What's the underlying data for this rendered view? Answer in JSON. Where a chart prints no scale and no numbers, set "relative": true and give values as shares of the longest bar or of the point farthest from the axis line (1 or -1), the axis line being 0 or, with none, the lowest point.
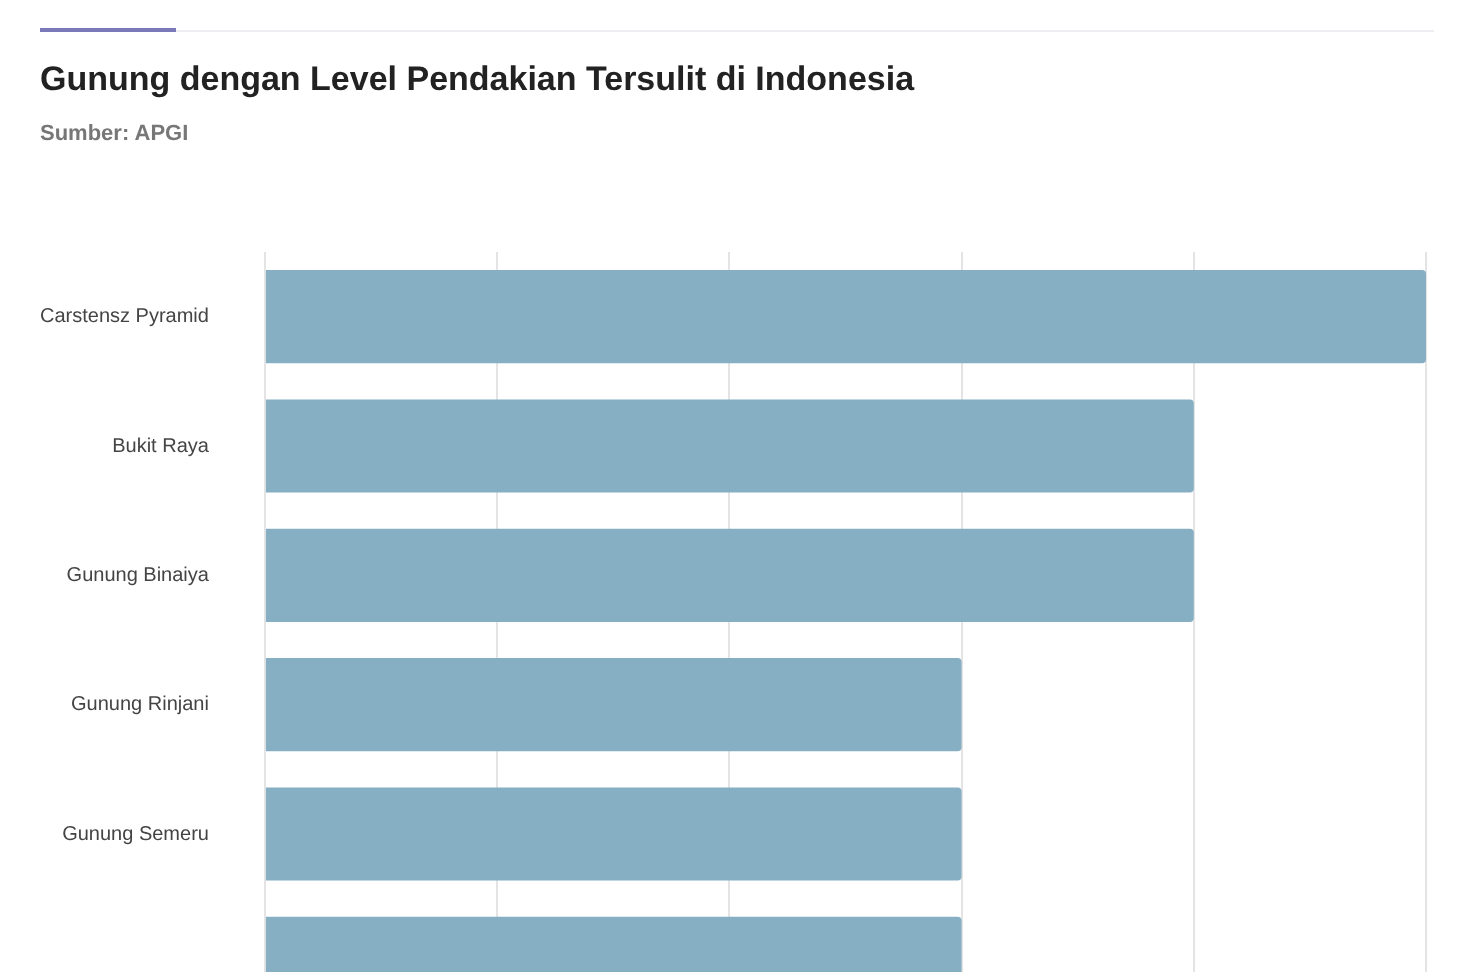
{
  "chart_data": {
    "type": "bar",
    "orientation": "horizontal",
    "relative": true,
    "title": "Gunung dengan Level Pendakian Tersulit di Indonesia",
    "subtitle": "Sumber: APGI",
    "categories": [
      "Carstensz Pyramid",
      "Bukit Raya",
      "Gunung Binaiya",
      "Gunung Rinjani",
      "Gunung Semeru",
      null
    ],
    "values": [
      1,
      0.8,
      0.8,
      0.6,
      0.6,
      0.6
    ],
    "color": "#86afc4",
    "grid": "x",
    "legend": false
  }
}
